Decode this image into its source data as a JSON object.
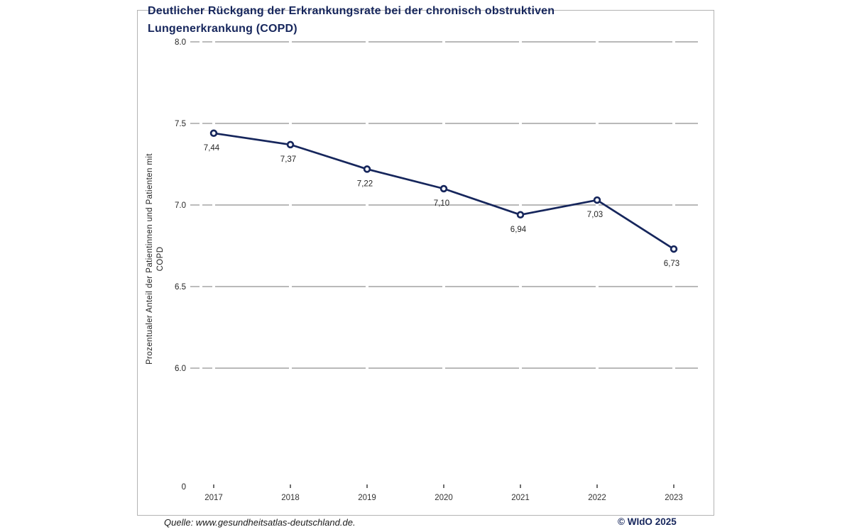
{
  "page": {
    "title_line1": "Deutlicher Rückgang der Erkrankungsrate bei der chronisch obstruktiven",
    "title_line2": "Lungenerkrankung (COPD)",
    "source": "Quelle: www.gesundheitsatlas-deutschland.de.",
    "copyright": "© WIdO 2025"
  },
  "colors": {
    "accent_navy": "#16265c",
    "gridline_gray": "#8f8f8f",
    "tick_mark_dark": "#4a4a4a",
    "frame_border": "#b3b3b3",
    "label_dark": "#262626",
    "marker_fill": "#ffffff"
  },
  "chart_data": {
    "type": "line",
    "title": "Deutlicher Rückgang der Erkrankungsrate bei der chronisch obstruktiven Lungenerkrankung (COPD)",
    "ylabel": "Prozentualer Anteil der Patientinnen und Patienten mit COPD",
    "ylabel_line1": "Prozentualer Anteil der Patientinnen und Patienten mit",
    "ylabel_line2": "COPD",
    "xlabel": "",
    "x": [
      2017,
      2018,
      2019,
      2020,
      2021,
      2022,
      2023
    ],
    "values": [
      7.44,
      7.37,
      7.22,
      7.1,
      6.94,
      7.03,
      6.73
    ],
    "point_labels": [
      "7,44",
      "7,37",
      "7,22",
      "7,10",
      "6,94",
      "7,03",
      "6,73"
    ],
    "yticks": [
      8.0,
      7.5,
      7.0,
      6.5,
      6.0
    ],
    "ytick_labels": [
      "8.0",
      "7.5",
      "7.0",
      "6.5",
      "6.0"
    ],
    "zero_label": "0",
    "ylim": [
      0,
      8.0
    ],
    "axis_break": true,
    "grid": "horizontal",
    "legend": "none",
    "marker": "open-circle"
  }
}
